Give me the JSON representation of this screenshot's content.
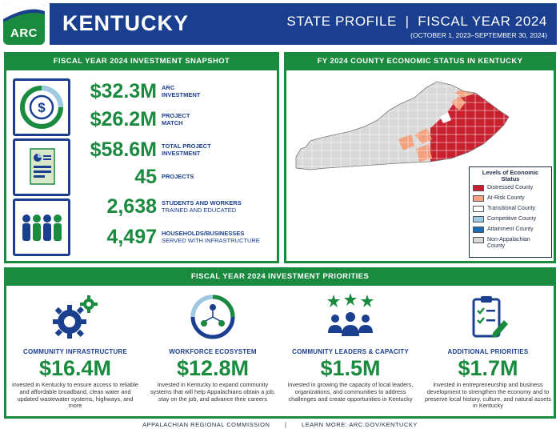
{
  "header": {
    "logo_text": "ARC",
    "state": "KENTUCKY",
    "profile_title": "STATE PROFILE  |  FISCAL YEAR 2024",
    "profile_sub": "(OCTOBER 1, 2023–SEPTEMBER 30, 2024)"
  },
  "snapshot": {
    "title": "FISCAL YEAR 2024 INVESTMENT SNAPSHOT",
    "stats": [
      {
        "value": "$32.3M",
        "label_bold": "ARC",
        "label_bold2": "INVESTMENT",
        "label": ""
      },
      {
        "value": "$26.2M",
        "label_bold": "PROJECT",
        "label_bold2": "MATCH",
        "label": ""
      },
      {
        "value": "$58.6M",
        "label_bold": "TOTAL PROJECT",
        "label_bold2": "INVESTMENT",
        "label": ""
      },
      {
        "value": "45",
        "label_bold": "PROJECTS",
        "label_bold2": "",
        "label": ""
      },
      {
        "value": "2,638",
        "label_bold": "STUDENTS AND WORKERS",
        "label_bold2": "",
        "label": "TRAINED AND EDUCATED"
      },
      {
        "value": "4,497",
        "label_bold": "HOUSEHOLDS/BUSINESSES",
        "label_bold2": "",
        "label": "SERVED WITH INFRASTRUCTURE"
      }
    ]
  },
  "map": {
    "title": "FY 2024 COUNTY ECONOMIC STATUS IN KENTUCKY",
    "legend_title": "Levels of Economic Status",
    "legend": [
      {
        "label": "Distressed County",
        "color": "#c8202f"
      },
      {
        "label": "At-Risk County",
        "color": "#f2a07e"
      },
      {
        "label": "Transitional County",
        "color": "#ffffff"
      },
      {
        "label": "Competitive County",
        "color": "#9ec9e2"
      },
      {
        "label": "Attainment County",
        "color": "#1f6bb3"
      },
      {
        "label": "Non-Appalachian County",
        "color": "#d9d9d9"
      }
    ]
  },
  "priorities": {
    "title": "FISCAL YEAR 2024 INVESTMENT PRIORITIES",
    "items": [
      {
        "title": "COMMUNITY INFRASTRUCTURE",
        "amount": "$16.4M",
        "desc": "invested in Kentucky to ensure access to reliable and affordable broadband, clean water and updated wastewater systems, highways, and more",
        "icon": "gears-icon"
      },
      {
        "title": "WORKFORCE ECOSYSTEM",
        "amount": "$12.8M",
        "desc": "invested in Kentucky to expand community systems that will help Appalachians obtain a job, stay on the job, and advance their careers",
        "icon": "network-people-icon"
      },
      {
        "title": "COMMUNITY LEADERS & CAPACITY",
        "amount": "$1.5M",
        "desc": "invested in growing the capacity of local leaders, organizations, and communities to address challenges and create opportunities in Kentucky",
        "icon": "leaders-stars-icon"
      },
      {
        "title": "ADDITIONAL PRIORITIES",
        "amount": "$1.7M",
        "desc": "invested in entrepreneurship and business development to strengthen the economy and to preserve local history, culture, and natural assets in Kentucky",
        "icon": "clipboard-check-icon"
      }
    ]
  },
  "footer": {
    "org": "APPALACHIAN REGIONAL COMMISSION",
    "sep": "|",
    "link": "LEARN MORE: ARC.GOV/KENTUCKY"
  },
  "colors": {
    "green": "#1a8a3f",
    "navy": "#1b3f8f",
    "distressed": "#c8202f",
    "at_risk": "#f2a07e",
    "non_appalachian": "#d9d9d9"
  }
}
